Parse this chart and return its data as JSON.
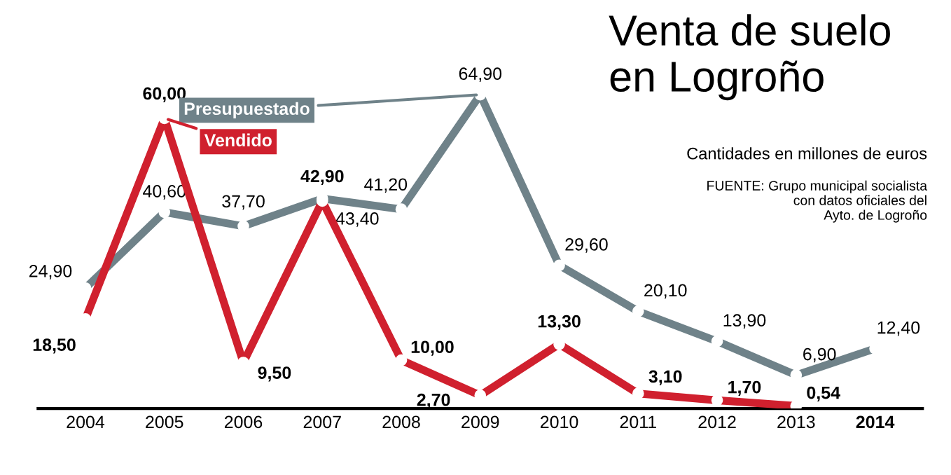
{
  "chart_data": {
    "type": "line",
    "title": "Venta de suelo en Logroño",
    "subtitle": "Cantidades en millones de euros",
    "annotations": [
      "FUENTE: Grupo municipal socialista\ncon datos oficiales del\nAyto. de Logroño"
    ],
    "categories": [
      "2004",
      "2005",
      "2006",
      "2007",
      "2008",
      "2009",
      "2010",
      "2011",
      "2012",
      "2013",
      "2014"
    ],
    "series": [
      {
        "name": "Presupuestado",
        "color": "#6f8289",
        "values": [
          24.9,
          40.6,
          37.7,
          43.4,
          41.2,
          64.9,
          29.6,
          20.1,
          13.9,
          6.9,
          12.4
        ],
        "value_labels": [
          "24,90",
          "40,60",
          "37,70",
          "43,40",
          "41,20",
          "64,90",
          "29,60",
          "20,10",
          "13,90",
          "6,90",
          "12,40"
        ]
      },
      {
        "name": "Vendido",
        "color": "#d0202e",
        "values": [
          18.5,
          60.0,
          9.5,
          42.9,
          10.0,
          2.7,
          13.3,
          3.1,
          1.7,
          0.54,
          null
        ],
        "value_labels": [
          "18,50",
          "60,00",
          "9,50",
          "42,90",
          "10,00",
          "2,70",
          "13,30",
          "3,10",
          "1,70",
          "0,54",
          null
        ]
      }
    ],
    "marker": "circle",
    "line_style": "solid",
    "grid": false,
    "legend": false
  }
}
